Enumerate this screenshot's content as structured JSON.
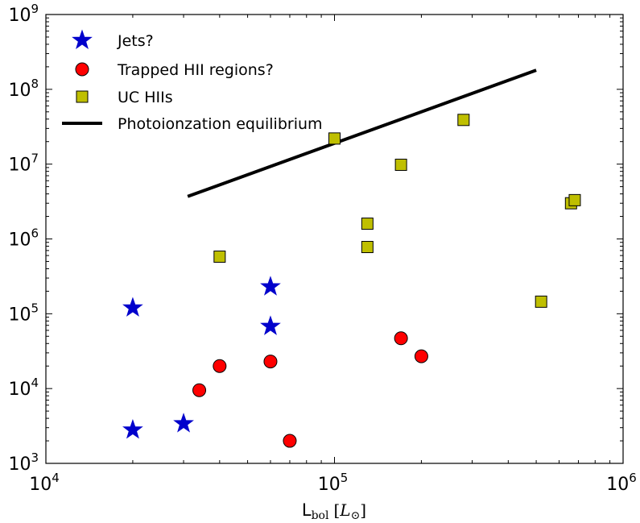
{
  "chart_data": {
    "type": "scatter",
    "xscale": "log",
    "yscale": "log",
    "xlim": [
      10000,
      1000000
    ],
    "ylim": [
      1000,
      1000000000
    ],
    "xticks": [
      {
        "value": 10000,
        "base": "10",
        "exp": "4"
      },
      {
        "value": 100000,
        "base": "10",
        "exp": "5"
      },
      {
        "value": 1000000,
        "base": "10",
        "exp": "6"
      }
    ],
    "yticks": [
      {
        "value": 1000,
        "base": "10",
        "exp": "3"
      },
      {
        "value": 10000,
        "base": "10",
        "exp": "4"
      },
      {
        "value": 100000,
        "base": "10",
        "exp": "5"
      },
      {
        "value": 1000000,
        "base": "10",
        "exp": "6"
      },
      {
        "value": 10000000,
        "base": "10",
        "exp": "7"
      },
      {
        "value": 100000000,
        "base": "10",
        "exp": "8"
      },
      {
        "value": 1000000000,
        "base": "10",
        "exp": "9"
      }
    ],
    "xlabel": {
      "main": "L",
      "sub": "bol",
      "unit_open": "[",
      "unit_sym": "L",
      "unit_sub": "⊙",
      "unit_close": "]"
    },
    "ylabel": "",
    "title": "",
    "grid": false,
    "legend_position": "upper-left",
    "series": [
      {
        "name": "Jets?",
        "marker": "star",
        "color": "#0000cc",
        "points": [
          {
            "x": 20000,
            "y": 120000
          },
          {
            "x": 20000,
            "y": 2800
          },
          {
            "x": 30000,
            "y": 3400
          },
          {
            "x": 60000,
            "y": 230000
          },
          {
            "x": 60000,
            "y": 68000
          }
        ]
      },
      {
        "name": "Trapped HII regions?",
        "marker": "circle",
        "color": "#ff0000",
        "points": [
          {
            "x": 34000,
            "y": 9500
          },
          {
            "x": 40000,
            "y": 20000
          },
          {
            "x": 60000,
            "y": 23000
          },
          {
            "x": 70000,
            "y": 2000
          },
          {
            "x": 170000,
            "y": 47000
          },
          {
            "x": 200000,
            "y": 27000
          }
        ]
      },
      {
        "name": "UC HIIs",
        "marker": "square",
        "color": "#bfbf00",
        "points": [
          {
            "x": 40000,
            "y": 580000
          },
          {
            "x": 100000,
            "y": 22000000
          },
          {
            "x": 130000,
            "y": 1600000
          },
          {
            "x": 130000,
            "y": 780000
          },
          {
            "x": 170000,
            "y": 9800000
          },
          {
            "x": 280000,
            "y": 39000000
          },
          {
            "x": 520000,
            "y": 145000
          },
          {
            "x": 660000,
            "y": 3000000
          },
          {
            "x": 680000,
            "y": 3300000
          }
        ]
      },
      {
        "name": "Photoionzation equilibrium",
        "marker": "line",
        "color": "#000000",
        "points": [
          {
            "x": 31000,
            "y": 3700000
          },
          {
            "x": 500000,
            "y": 180000000
          }
        ]
      }
    ]
  }
}
